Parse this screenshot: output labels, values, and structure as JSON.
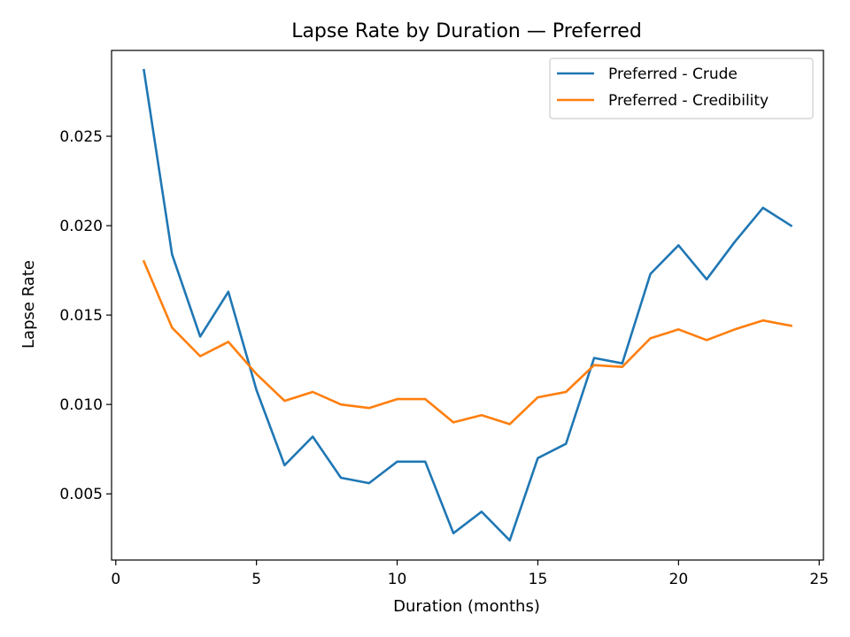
{
  "chart_data": {
    "type": "line",
    "title": "Lapse Rate by Duration — Preferred",
    "xlabel": "Duration (months)",
    "ylabel": "Lapse Rate",
    "xlim": [
      -0.15,
      25.15
    ],
    "ylim": [
      0.0013,
      0.0298
    ],
    "xticks": [
      0,
      5,
      10,
      15,
      20,
      25
    ],
    "xtick_labels": [
      "0",
      "5",
      "10",
      "15",
      "20",
      "25"
    ],
    "yticks": [
      0.005,
      0.01,
      0.015,
      0.02,
      0.025
    ],
    "ytick_labels": [
      "0.005",
      "0.010",
      "0.015",
      "0.020",
      "0.025"
    ],
    "grid": false,
    "legend_position": "top-right",
    "x": [
      1,
      2,
      3,
      4,
      5,
      6,
      7,
      8,
      9,
      10,
      11,
      12,
      13,
      14,
      15,
      16,
      17,
      18,
      19,
      20,
      21,
      22,
      23,
      24
    ],
    "series": [
      {
        "name": "Preferred - Crude",
        "color": "#1f77b4",
        "values": [
          0.0287,
          0.0184,
          0.0138,
          0.0163,
          0.0108,
          0.0066,
          0.0082,
          0.0059,
          0.0056,
          0.0068,
          0.0068,
          0.0028,
          0.004,
          0.0024,
          0.007,
          0.0078,
          0.0126,
          0.0123,
          0.0173,
          0.0189,
          0.017,
          0.0191,
          0.021,
          0.02
        ]
      },
      {
        "name": "Preferred - Credibility",
        "color": "#ff7f0e",
        "values": [
          0.018,
          0.0143,
          0.0127,
          0.0135,
          0.0117,
          0.0102,
          0.0107,
          0.01,
          0.0098,
          0.0103,
          0.0103,
          0.009,
          0.0094,
          0.0089,
          0.0104,
          0.0107,
          0.0122,
          0.0121,
          0.0137,
          0.0142,
          0.0136,
          0.0142,
          0.0147,
          0.0144
        ]
      }
    ]
  }
}
